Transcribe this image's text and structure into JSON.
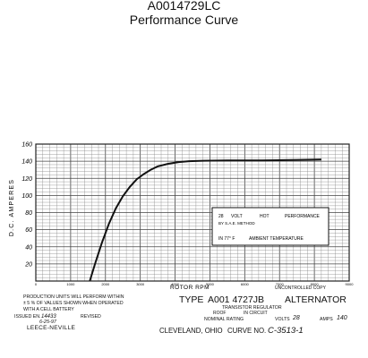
{
  "header": {
    "part_number": "A0014729LC",
    "subtitle": "Performance Curve"
  },
  "chart_data": {
    "type": "line",
    "title": "",
    "xlabel": "ROTOR RPM",
    "ylabel": "D.C. AMPERES",
    "xlim": [
      0,
      9000
    ],
    "ylim": [
      0,
      160
    ],
    "x_ticks": [
      0,
      1000,
      2000,
      3000,
      4000,
      5000,
      6000,
      7000,
      8000,
      9000
    ],
    "x_tick_labels": [
      "0",
      "1000",
      "2000",
      "3000",
      "4000",
      "5000",
      "6000",
      "7000",
      "8000",
      "9000"
    ],
    "y_ticks": [
      20,
      40,
      60,
      80,
      100,
      120,
      140,
      160
    ],
    "y_tick_labels": [
      "20",
      "40",
      "60",
      "80",
      "100",
      "120",
      "140",
      "160"
    ],
    "grid": true,
    "series": [
      {
        "name": "",
        "x": [
          1550,
          1700,
          1900,
          2100,
          2300,
          2500,
          2700,
          2900,
          3100,
          3300,
          3500,
          3800,
          4100,
          4400,
          4800,
          5500,
          6500,
          7500,
          8200
        ],
        "y": [
          0,
          20,
          45,
          67,
          85,
          99,
          110,
          119,
          125,
          130,
          134,
          137,
          139,
          140,
          140.5,
          141,
          141,
          141.5,
          142
        ]
      }
    ],
    "annotation": {
      "line1_a": "28",
      "line1_b": "VOLT",
      "line1_c": "HOT",
      "line1_d": "PERFORMANCE",
      "line2": "BY S.A.E. METHOD",
      "line3_a": "IN 77° F",
      "line3_b": "AMBIENT TEMPERATURE"
    }
  },
  "footer": {
    "uncontrolled": "UNCONTROLLED COPY",
    "note_line1": "PRODUCTION UNITS WILL PERFORM WITHIN",
    "note_line2": "± 5 % OF VALUES SHOWN WHEN OPERATED",
    "note_line3": "WITH A          CELL BATTERY",
    "issued_label": "ISSUED EN.",
    "issued_en": "14433",
    "issued_date": "6-25-97",
    "revised_label": "REVISED",
    "company": "LEECE-NEVILLE",
    "type_label": "TYPE",
    "type_number": "A001 4727JB",
    "alternator": "ALTERNATOR",
    "regulator_line1": "TRANSISTOR REGULATOR",
    "regulator_a": "ROOF",
    "regulator_b": "IN CIRCUIT",
    "nominal": "NOMINAL RATING",
    "volts_label": "VOLTS",
    "volts": "28",
    "amps_label": "AMPS",
    "amps": "140",
    "city": "CLEVELAND, OHIO",
    "curve_label": "CURVE NO.",
    "curve_no": "C-3513-1"
  }
}
